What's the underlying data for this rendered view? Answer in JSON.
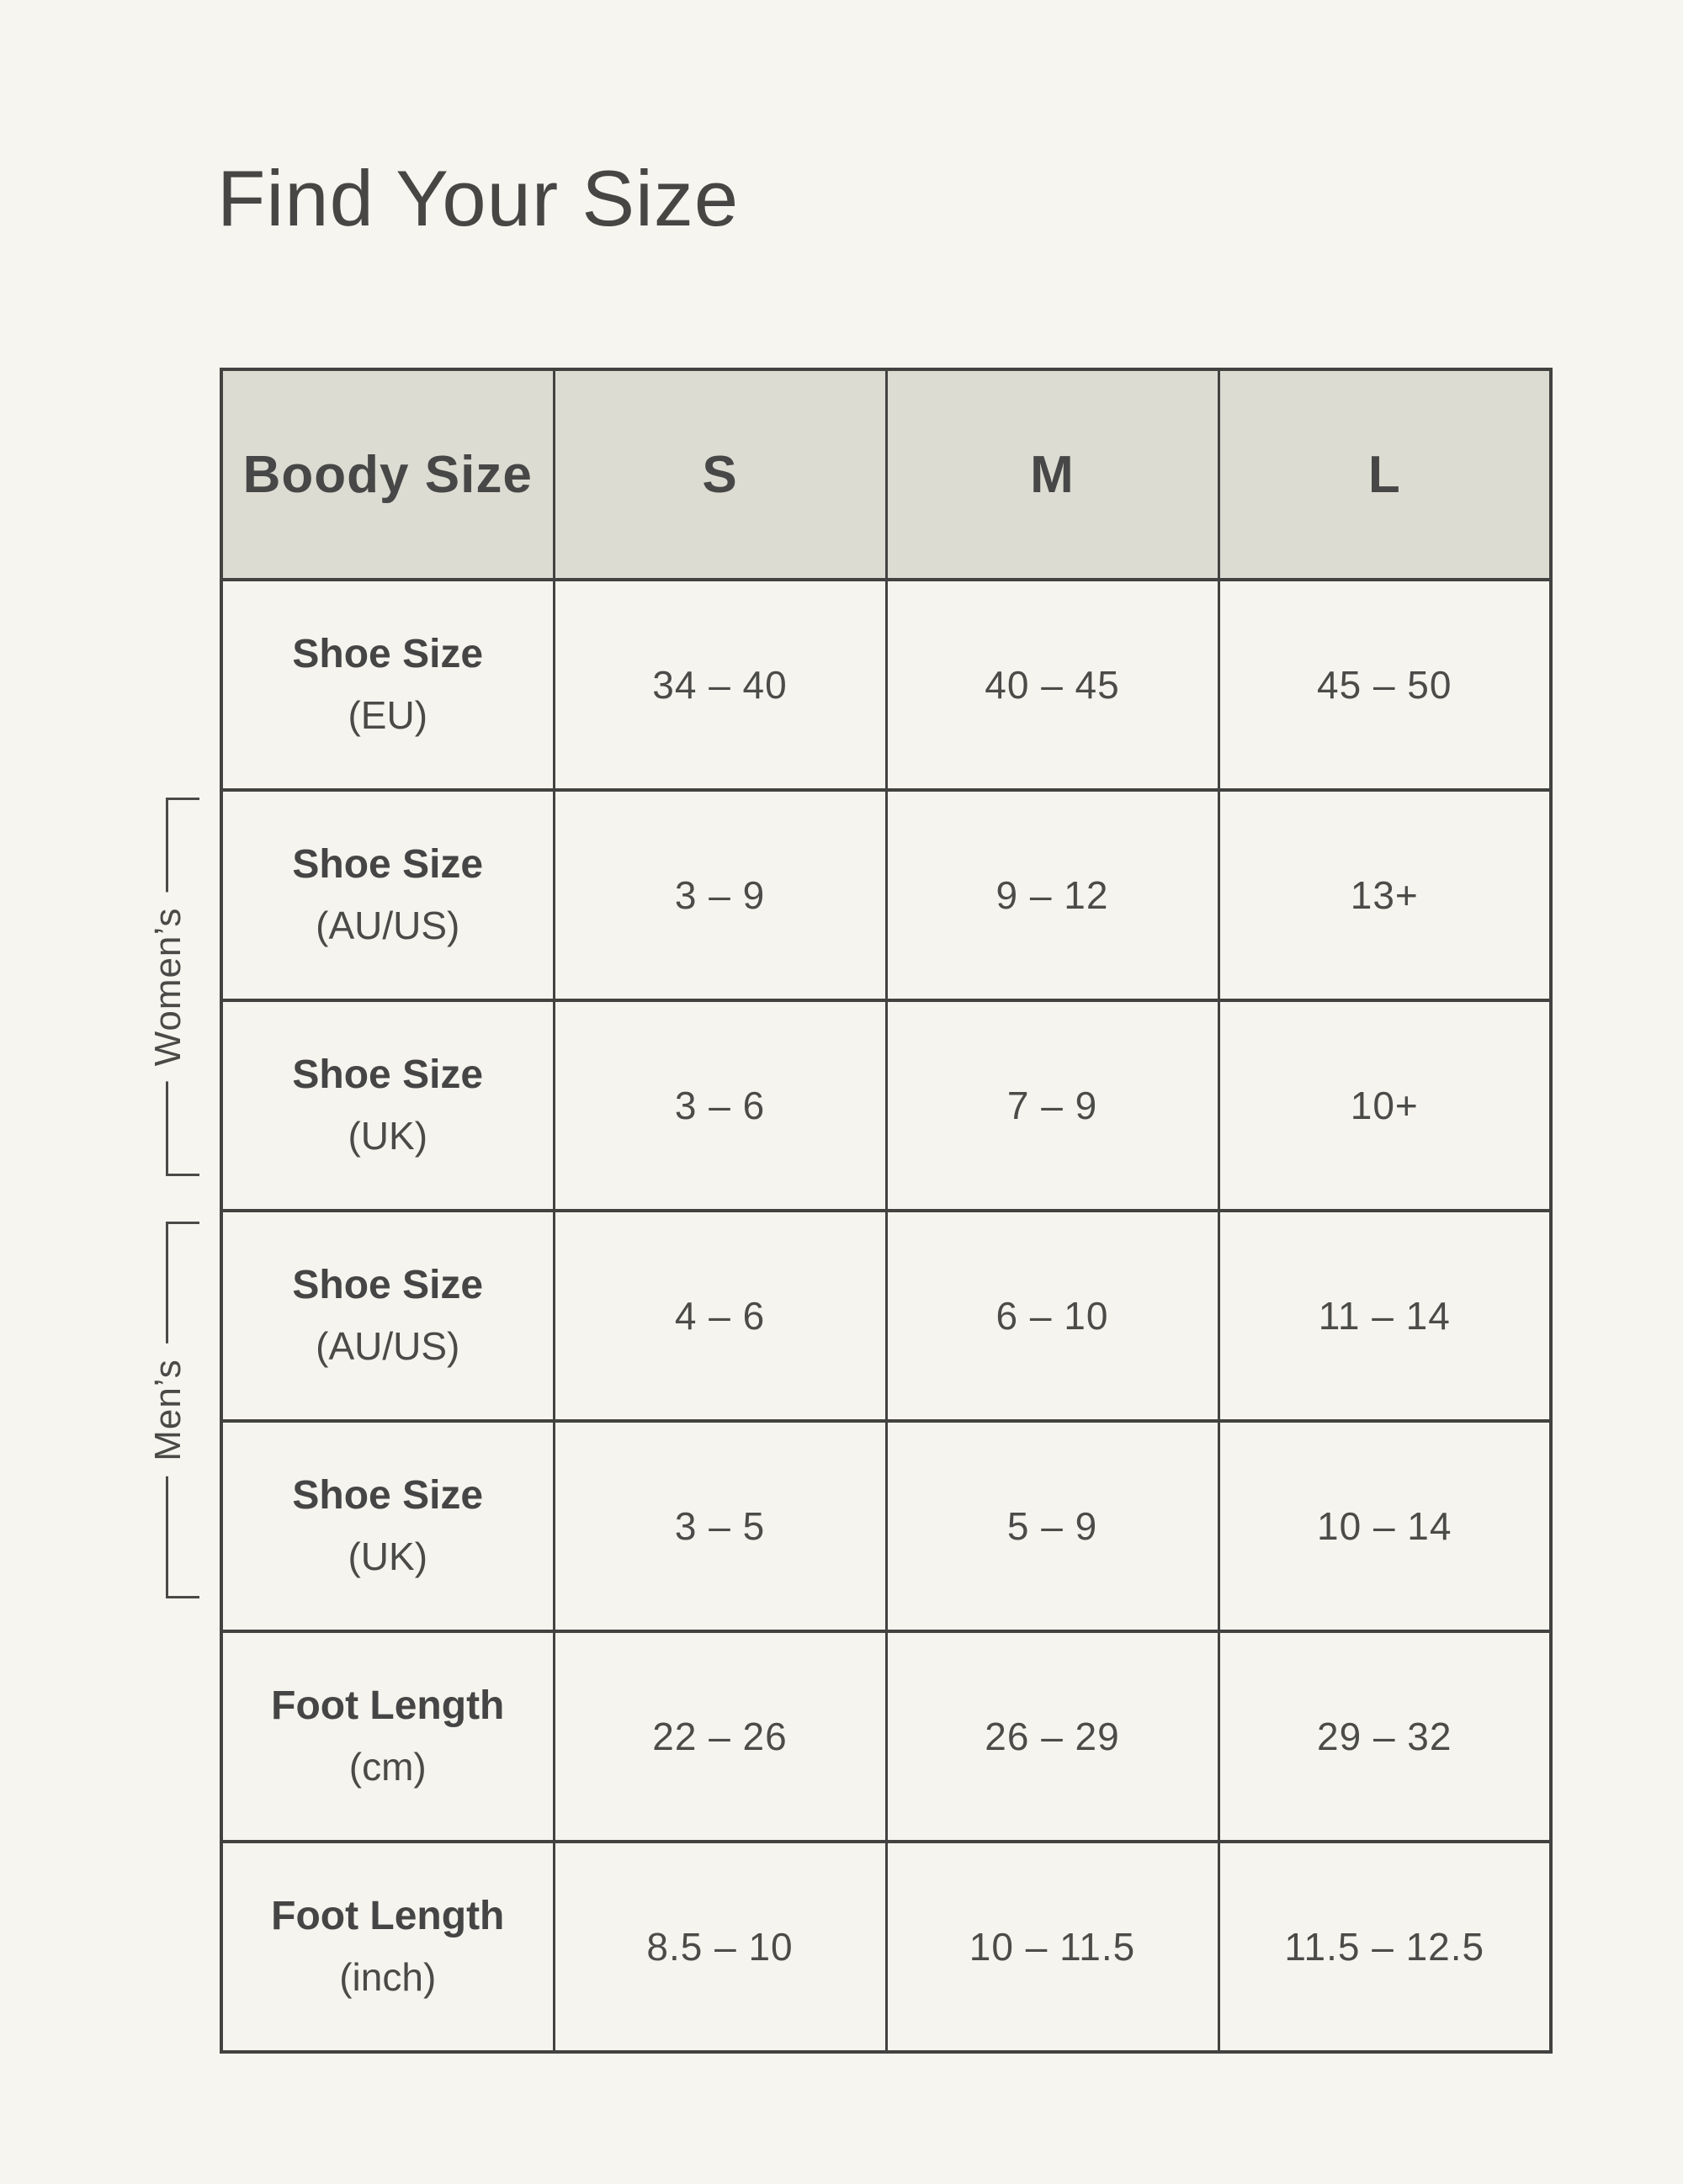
{
  "page": {
    "title": "Find Your Size"
  },
  "colors": {
    "page_background": "#f6f5ef",
    "header_cell_background": "#dcdcd3",
    "body_cell_background": "#f5f4ee",
    "border": "#424240",
    "text": "#474747"
  },
  "groups": {
    "womens_label": "Women’s",
    "mens_label": "Men’s"
  },
  "table": {
    "header": [
      "Boody Size",
      "S",
      "M",
      "L"
    ],
    "rows": [
      {
        "label": "Shoe Size",
        "sub": "(EU)",
        "values": [
          "34 – 40",
          "40 – 45",
          "45 – 50"
        ]
      },
      {
        "label": "Shoe Size",
        "sub": "(AU/US)",
        "values": [
          "3 – 9",
          "9 – 12",
          "13+"
        ]
      },
      {
        "label": "Shoe Size",
        "sub": "(UK)",
        "values": [
          "3 – 6",
          "7 – 9",
          "10+"
        ]
      },
      {
        "label": "Shoe Size",
        "sub": "(AU/US)",
        "values": [
          "4 – 6",
          "6 – 10",
          "11 – 14"
        ]
      },
      {
        "label": "Shoe Size",
        "sub": "(UK)",
        "values": [
          "3 – 5",
          "5 – 9",
          "10 – 14"
        ]
      },
      {
        "label": "Foot Length",
        "sub": "(cm)",
        "values": [
          "22 – 26",
          "26 – 29",
          "29 – 32"
        ]
      },
      {
        "label": "Foot Length",
        "sub": "(inch)",
        "values": [
          "8.5 – 10",
          "10 – 11.5",
          "11.5 – 12.5"
        ]
      }
    ]
  },
  "chart_data": {
    "type": "table",
    "title": "Find Your Size",
    "columns": [
      "Boody Size",
      "S",
      "M",
      "L"
    ],
    "row_groups": [
      {
        "group": "",
        "row": "Shoe Size (EU)",
        "S": "34 – 40",
        "M": "40 – 45",
        "L": "45 – 50"
      },
      {
        "group": "Women’s",
        "row": "Shoe Size (AU/US)",
        "S": "3 – 9",
        "M": "9 – 12",
        "L": "13+"
      },
      {
        "group": "Women’s",
        "row": "Shoe Size (UK)",
        "S": "3 – 6",
        "M": "7 – 9",
        "L": "10+"
      },
      {
        "group": "Men’s",
        "row": "Shoe Size (AU/US)",
        "S": "4 – 6",
        "M": "6 – 10",
        "L": "11 – 14"
      },
      {
        "group": "Men’s",
        "row": "Shoe Size (UK)",
        "S": "3 – 5",
        "M": "5 – 9",
        "L": "10 – 14"
      },
      {
        "group": "",
        "row": "Foot Length (cm)",
        "S": "22 – 26",
        "M": "26 – 29",
        "L": "29 – 32"
      },
      {
        "group": "",
        "row": "Foot Length (inch)",
        "S": "8.5 – 10",
        "M": "10 – 11.5",
        "L": "11.5 – 12.5"
      }
    ]
  }
}
